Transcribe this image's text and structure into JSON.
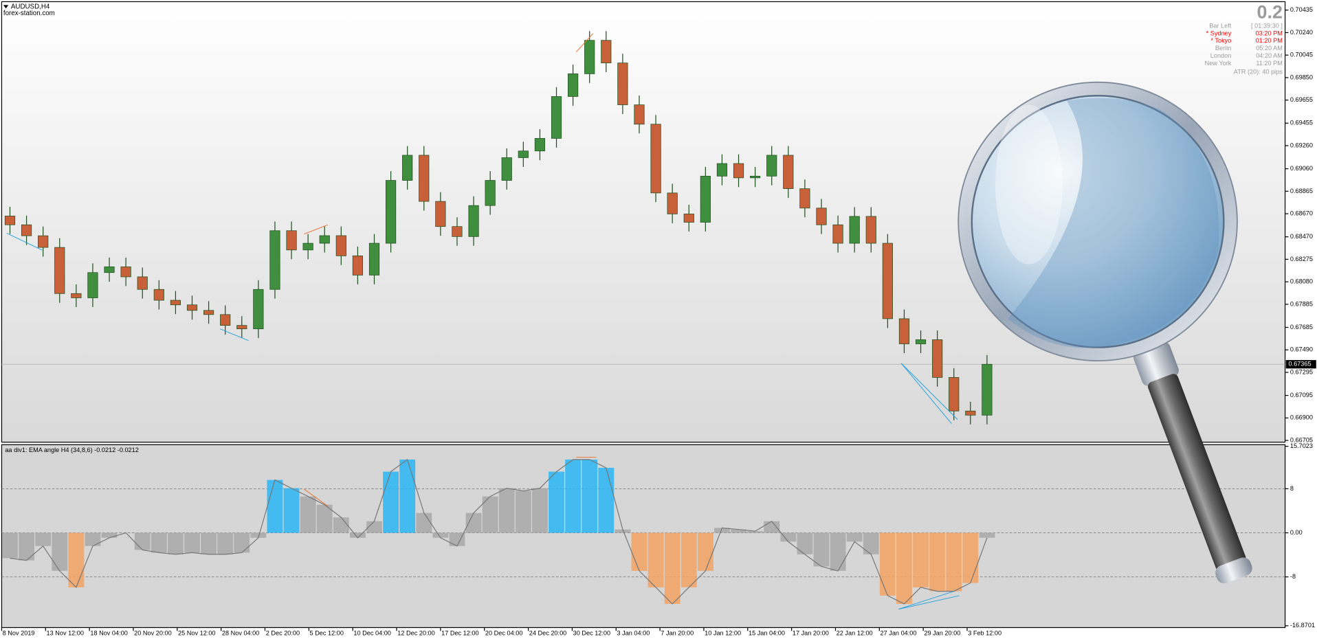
{
  "header": {
    "symbol": "AUDUSD,H4",
    "site": "forex-station.com"
  },
  "clock": {
    "spread": "0.2",
    "rows": [
      {
        "name": "Bar Left",
        "time": "[ 01:39:30 ]",
        "color": "#9a9a9a"
      },
      {
        "name": "* Sydney",
        "time": "03:20 PM",
        "color": "#ff0000"
      },
      {
        "name": "* Tokyo",
        "time": "01:20 PM",
        "color": "#ff0000"
      },
      {
        "name": "Berlin",
        "time": "05:20 AM",
        "color": "#9a9a9a"
      },
      {
        "name": "London",
        "time": "04:20 AM",
        "color": "#9a9a9a"
      },
      {
        "name": "New York",
        "time": "11:20 PM",
        "color": "#9a9a9a"
      }
    ],
    "atr": "ATR (20): 40 pips"
  },
  "chart_data": [
    {
      "type": "candlestick",
      "bull_color": "#3f8f3f",
      "bear_color": "#c8613a",
      "wick_color": "#1f4f1f",
      "xlim": [
        0,
        77.5
      ],
      "ylim": [
        0.6669,
        0.70508
      ],
      "current_price": 0.67365,
      "yticks": [
        0.70435,
        {
          "value": 0.7024,
          "label": "0.70240"
        },
        {
          "value": 0.70045,
          "label": "0.70045"
        },
        {
          "value": 0.6985,
          "label": "0.69850"
        },
        0.69655,
        0.69455,
        {
          "value": 0.6926,
          "label": "0.69260"
        },
        {
          "value": 0.6906,
          "label": "0.69060"
        },
        0.68865,
        {
          "value": 0.6867,
          "label": "0.68670"
        },
        {
          "value": 0.6847,
          "label": "0.68470"
        },
        0.68275,
        {
          "value": 0.6808,
          "label": "0.68080"
        },
        0.67885,
        0.67685,
        {
          "value": 0.6749,
          "label": "0.67490"
        },
        0.67295,
        0.67095,
        {
          "value": 0.669,
          "label": "0.66900"
        },
        0.66705
      ],
      "open": [
        0.6865,
        0.68574,
        0.68479,
        0.68378,
        0.67978,
        0.67941,
        0.6816,
        0.6821,
        0.68123,
        0.68014,
        0.6792,
        0.6788,
        0.67832,
        0.67796,
        0.67702,
        0.67672,
        0.68014,
        0.68523,
        0.68356,
        0.68414,
        0.6848,
        0.68305,
        0.68138,
        0.68414,
        0.68959,
        0.69177,
        0.68777,
        0.68559,
        0.68472,
        0.68741,
        0.68959,
        0.69156,
        0.69214,
        0.69323,
        0.69686,
        0.69883,
        0.70173,
        0.69977,
        0.69614,
        0.69446,
        0.6885,
        0.68668,
        0.68596,
        0.68996,
        0.69105,
        0.68981,
        0.68996,
        0.69177,
        0.68887,
        0.68719,
        0.68574,
        0.68414,
        0.68647,
        0.68414,
        0.6776,
        0.67542,
        0.67578,
        0.67251,
        0.6696,
        0.66924
      ],
      "high": [
        0.6873,
        0.68654,
        0.68559,
        0.68458,
        0.68058,
        0.6824,
        0.6829,
        0.6829,
        0.68203,
        0.68094,
        0.68,
        0.6796,
        0.67912,
        0.67876,
        0.67782,
        0.68094,
        0.68603,
        0.68603,
        0.68494,
        0.6856,
        0.6856,
        0.68385,
        0.68494,
        0.69039,
        0.69257,
        0.69257,
        0.68857,
        0.68639,
        0.68821,
        0.69039,
        0.69236,
        0.69294,
        0.69403,
        0.69766,
        0.69963,
        0.70253,
        0.70253,
        0.70057,
        0.69694,
        0.69526,
        0.6893,
        0.68748,
        0.69076,
        0.69185,
        0.69185,
        0.69076,
        0.69257,
        0.69257,
        0.68967,
        0.68799,
        0.68654,
        0.68727,
        0.68727,
        0.68494,
        0.6784,
        0.67658,
        0.67658,
        0.67331,
        0.6704,
        0.67445
      ],
      "low": [
        0.68494,
        0.68399,
        0.68298,
        0.67898,
        0.67861,
        0.67861,
        0.6808,
        0.68043,
        0.67934,
        0.6784,
        0.678,
        0.67752,
        0.67716,
        0.67622,
        0.67592,
        0.67592,
        0.67934,
        0.68276,
        0.68276,
        0.68334,
        0.68225,
        0.68058,
        0.68058,
        0.68334,
        0.68879,
        0.68697,
        0.68479,
        0.68392,
        0.68392,
        0.68661,
        0.68879,
        0.69076,
        0.69134,
        0.69243,
        0.69606,
        0.69803,
        0.69897,
        0.69534,
        0.69366,
        0.6877,
        0.68588,
        0.68516,
        0.68516,
        0.68916,
        0.68901,
        0.68901,
        0.68916,
        0.68807,
        0.68639,
        0.68494,
        0.68334,
        0.68334,
        0.68334,
        0.6768,
        0.67462,
        0.67462,
        0.67171,
        0.6688,
        0.66844,
        0.66844
      ],
      "close": [
        0.68574,
        0.68479,
        0.68378,
        0.67978,
        0.67941,
        0.6816,
        0.6821,
        0.68123,
        0.68014,
        0.6792,
        0.6788,
        0.67832,
        0.67796,
        0.67702,
        0.67672,
        0.68014,
        0.68523,
        0.68356,
        0.68414,
        0.6848,
        0.68305,
        0.68138,
        0.68414,
        0.68959,
        0.69177,
        0.68777,
        0.68559,
        0.68472,
        0.68741,
        0.68959,
        0.69156,
        0.69214,
        0.69323,
        0.69686,
        0.69883,
        0.70173,
        0.69977,
        0.69614,
        0.69446,
        0.6885,
        0.68668,
        0.68596,
        0.68996,
        0.69105,
        0.68981,
        0.68996,
        0.69177,
        0.68887,
        0.68719,
        0.68574,
        0.68414,
        0.68647,
        0.68414,
        0.6776,
        0.67542,
        0.67578,
        0.67251,
        0.6696,
        0.66924,
        0.67365
      ]
    },
    {
      "type": "histogram-line",
      "title": "aa div1: EMA angle H4 (34,8,6) -0.0212 -0.0212",
      "line_color": "#777777",
      "xlim": [
        0,
        77.5
      ],
      "ylim": [
        -17.2,
        16.0
      ],
      "yticks": [
        15.7023,
        8,
        {
          "value": 0,
          "label": "0.00"
        },
        -8,
        -16.8701
      ],
      "dashed_levels": [
        8,
        0,
        -8
      ],
      "xticks": [
        {
          "value": 0,
          "label": "8 Nov 2019"
        },
        {
          "value": 2.65,
          "label": "13 Nov 12:00"
        },
        {
          "value": 5.3,
          "label": "18 Nov 04:00"
        },
        {
          "value": 7.95,
          "label": "20 Nov 20:00"
        },
        {
          "value": 10.6,
          "label": "25 Nov 12:00"
        },
        {
          "value": 13.25,
          "label": "28 Nov 04:00"
        },
        {
          "value": 15.9,
          "label": "2 Dec 20:00"
        },
        {
          "value": 18.55,
          "label": "5 Dec 12:00"
        },
        {
          "value": 21.2,
          "label": "10 Dec 04:00"
        },
        {
          "value": 23.85,
          "label": "12 Dec 20:00"
        },
        {
          "value": 26.5,
          "label": "17 Dec 12:00"
        },
        {
          "value": 29.15,
          "label": "20 Dec 04:00"
        },
        {
          "value": 31.8,
          "label": "24 Dec 20:00"
        },
        {
          "value": 34.45,
          "label": "30 Dec 12:00"
        },
        {
          "value": 37.1,
          "label": "3 Jan 04:00"
        },
        {
          "value": 39.75,
          "label": "7 Jan 20:00"
        },
        {
          "value": 42.4,
          "label": "10 Jan 12:00"
        },
        {
          "value": 45.05,
          "label": "15 Jan 04:00"
        },
        {
          "value": 47.7,
          "label": "17 Jan 20:00"
        },
        {
          "value": 50.35,
          "label": "22 Jan 12:00"
        },
        {
          "value": 53,
          "label": "27 Jan 04:00"
        },
        {
          "value": 55.65,
          "label": "29 Jan 20:00"
        },
        {
          "value": 58.3,
          "label": "3 Feb 12:00"
        }
      ],
      "values": [
        -4.6,
        -5,
        -2.4,
        -6.9,
        -9.9,
        -2.4,
        -0.9,
        0,
        -3.1,
        -3.6,
        -3.9,
        -3.6,
        -3.9,
        -3.9,
        -3.6,
        -0.9,
        9.6,
        8.1,
        6.6,
        5.1,
        2.8,
        -0.9,
        2.1,
        11.1,
        13.3,
        3.6,
        -0.9,
        -2.4,
        3.6,
        6.6,
        8.1,
        7.6,
        8.1,
        11.1,
        13.3,
        13.3,
        11.8,
        0.6,
        -6.9,
        -9.9,
        -12.9,
        -9.9,
        -6.9,
        0.9,
        0.6,
        0.3,
        2.1,
        -1.6,
        -3.9,
        -6.1,
        -6.9,
        -1.6,
        -3.9,
        -11.4,
        -12.9,
        -9.9,
        -10.6,
        -10.6,
        -9.1,
        -0.9
      ],
      "colors": [
        "#a8a8a8",
        "#a8a8a8",
        "#a8a8a8",
        "#a8a8a8",
        "#f4a261",
        "#a8a8a8",
        "#a8a8a8",
        "#a8a8a8",
        "#a8a8a8",
        "#a8a8a8",
        "#a8a8a8",
        "#a8a8a8",
        "#a8a8a8",
        "#a8a8a8",
        "#a8a8a8",
        "#a8a8a8",
        "#29b6f6",
        "#29b6f6",
        "#a8a8a8",
        "#a8a8a8",
        "#a8a8a8",
        "#a8a8a8",
        "#a8a8a8",
        "#29b6f6",
        "#29b6f6",
        "#a8a8a8",
        "#a8a8a8",
        "#a8a8a8",
        "#a8a8a8",
        "#a8a8a8",
        "#a8a8a8",
        "#a8a8a8",
        "#a8a8a8",
        "#29b6f6",
        "#29b6f6",
        "#29b6f6",
        "#29b6f6",
        "#a8a8a8",
        "#f4a261",
        "#f4a261",
        "#f4a261",
        "#f4a261",
        "#f4a261",
        "#a8a8a8",
        "#a8a8a8",
        "#a8a8a8",
        "#a8a8a8",
        "#a8a8a8",
        "#a8a8a8",
        "#a8a8a8",
        "#a8a8a8",
        "#a8a8a8",
        "#a8a8a8",
        "#f4a261",
        "#f4a261",
        "#f4a261",
        "#f4a261",
        "#f4a261",
        "#f4a261",
        "#a8a8a8"
      ]
    }
  ]
}
